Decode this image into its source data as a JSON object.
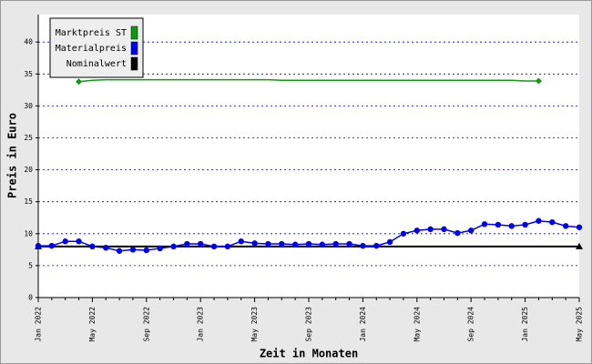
{
  "chart_data": {
    "type": "line",
    "x_label": "Zeit in Monaten",
    "y_label": "Preis in Euro",
    "categories": [
      "Jan 2022",
      null,
      null,
      null,
      "May 2022",
      null,
      null,
      null,
      "Sep 2022",
      null,
      null,
      null,
      "Jan 2023",
      null,
      null,
      null,
      "May 2023",
      null,
      null,
      null,
      "Sep 2023",
      null,
      null,
      null,
      "Jan 2024",
      null,
      null,
      null,
      "May 2024",
      null,
      null,
      null,
      "Sep 2024",
      null,
      null,
      null,
      "Jan 2025",
      null,
      null,
      null,
      "May 2025"
    ],
    "series": [
      {
        "name": "Marktpreis ST",
        "color": "#119911",
        "marker": "diamond",
        "values": [
          null,
          null,
          null,
          33.8,
          34.0,
          34.1,
          34.1,
          34.1,
          34.1,
          34.1,
          34.1,
          34.1,
          34.1,
          34.1,
          34.1,
          34.1,
          34.1,
          34.1,
          34.0,
          34.0,
          34.0,
          34.0,
          34.0,
          34.0,
          34.0,
          34.0,
          34.0,
          34.0,
          34.0,
          34.0,
          34.0,
          34.0,
          34.0,
          34.0,
          34.0,
          34.0,
          33.9,
          33.9,
          null,
          null,
          null
        ]
      },
      {
        "name": "Materialpreis",
        "color": "#0000ee",
        "marker": "circle",
        "values": [
          8.1,
          8.1,
          8.8,
          8.8,
          8.0,
          7.8,
          7.3,
          7.5,
          7.4,
          7.7,
          8.0,
          8.4,
          8.4,
          8.0,
          8.0,
          8.8,
          8.5,
          8.4,
          8.4,
          8.3,
          8.4,
          8.3,
          8.4,
          8.4,
          8.1,
          8.1,
          8.7,
          10.0,
          10.5,
          10.7,
          10.7,
          10.1,
          10.5,
          11.5,
          11.4,
          11.2,
          11.4,
          12.0,
          11.8,
          11.2,
          11.0
        ]
      },
      {
        "name": "Nominalwert",
        "color": "#000000",
        "marker": "triangle",
        "values": [
          8.0,
          8.0,
          8.0,
          8.0,
          8.0,
          8.0,
          8.0,
          8.0,
          8.0,
          8.0,
          8.0,
          8.0,
          8.0,
          8.0,
          8.0,
          8.0,
          8.0,
          8.0,
          8.0,
          8.0,
          8.0,
          8.0,
          8.0,
          8.0,
          8.0,
          8.0,
          8.0,
          8.0,
          8.0,
          8.0,
          8.0,
          8.0,
          8.0,
          8.0,
          8.0,
          8.0,
          8.0,
          8.0,
          8.0,
          8.0,
          8.0
        ]
      }
    ],
    "ylim": [
      0,
      44.3
    ],
    "yticks": [
      0,
      5,
      10,
      15,
      20,
      25,
      30,
      35,
      40
    ],
    "grid": true,
    "grid_color": "#0000cc",
    "legend": "top-left"
  }
}
